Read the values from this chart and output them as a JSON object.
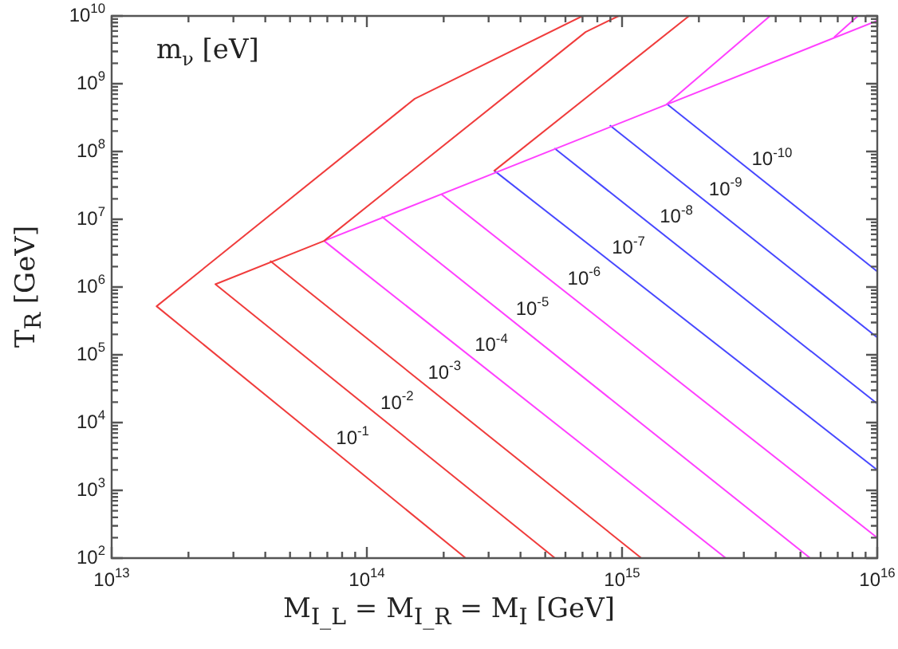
{
  "chart_data": {
    "type": "line",
    "xlabel": "M$_{I_L}$ = M$_{I_R}$ = M$_{I}$ [GeV]",
    "ylabel": "T$_{R}$ [GeV]",
    "log": "xy",
    "grid": false,
    "legend": false,
    "marker": "none",
    "line_style": "solid",
    "xlim": [
      10000000000000.0,
      1e+16
    ],
    "ylim": [
      100,
      10000000000.0
    ],
    "xticks": [
      {
        "value": 10000000000000.0,
        "label": "10$^{13}$"
      },
      {
        "value": 20000000000000.0,
        "label": null
      },
      {
        "value": 30000000000000.0,
        "label": null
      },
      {
        "value": 40000000000000.0,
        "label": null
      },
      {
        "value": 50000000000000.0,
        "label": null
      },
      {
        "value": 60000000000000.0,
        "label": null
      },
      {
        "value": 70000000000000.0,
        "label": null
      },
      {
        "value": 80000000000000.0,
        "label": null
      },
      {
        "value": 90000000000000.0,
        "label": null
      },
      {
        "value": 100000000000000.0,
        "label": "10$^{14}$"
      },
      {
        "value": 200000000000000.0,
        "label": null
      },
      {
        "value": 300000000000000.0,
        "label": null
      },
      {
        "value": 400000000000000.0,
        "label": null
      },
      {
        "value": 500000000000000.0,
        "label": null
      },
      {
        "value": 600000000000000.0,
        "label": null
      },
      {
        "value": 700000000000000.0,
        "label": null
      },
      {
        "value": 800000000000000.0,
        "label": null
      },
      {
        "value": 900000000000000.0,
        "label": null
      },
      {
        "value": 1000000000000000.0,
        "label": "10$^{15}$"
      },
      {
        "value": 2000000000000000.0,
        "label": null
      },
      {
        "value": 3000000000000000.0,
        "label": null
      },
      {
        "value": 4000000000000000.0,
        "label": null
      },
      {
        "value": 5000000000000000.0,
        "label": null
      },
      {
        "value": 6000000000000000.0,
        "label": null
      },
      {
        "value": 7000000000000000.0,
        "label": null
      },
      {
        "value": 8000000000000000.0,
        "label": null
      },
      {
        "value": 9000000000000000.0,
        "label": null
      },
      {
        "value": 1e+16,
        "label": "10$^{16}$"
      }
    ],
    "yticks": [
      {
        "value": 100.0,
        "label": "10$^{2}$"
      },
      {
        "value": 200.0,
        "label": null
      },
      {
        "value": 300.0,
        "label": null
      },
      {
        "value": 400.0,
        "label": null
      },
      {
        "value": 500.0,
        "label": null
      },
      {
        "value": 600.0,
        "label": null
      },
      {
        "value": 700.0,
        "label": null
      },
      {
        "value": 800.0,
        "label": null
      },
      {
        "value": 900.0,
        "label": null
      },
      {
        "value": 1000.0,
        "label": "10$^{3}$"
      },
      {
        "value": 2000.0,
        "label": null
      },
      {
        "value": 3000.0,
        "label": null
      },
      {
        "value": 4000.0,
        "label": null
      },
      {
        "value": 5000.0,
        "label": null
      },
      {
        "value": 6000.0,
        "label": null
      },
      {
        "value": 7000.0,
        "label": null
      },
      {
        "value": 8000.0,
        "label": null
      },
      {
        "value": 9000.0,
        "label": null
      },
      {
        "value": 10000.0,
        "label": "10$^{4}$"
      },
      {
        "value": 20000.0,
        "label": null
      },
      {
        "value": 30000.0,
        "label": null
      },
      {
        "value": 40000.0,
        "label": null
      },
      {
        "value": 50000.0,
        "label": null
      },
      {
        "value": 60000.0,
        "label": null
      },
      {
        "value": 70000.0,
        "label": null
      },
      {
        "value": 80000.0,
        "label": null
      },
      {
        "value": 90000.0,
        "label": null
      },
      {
        "value": 100000.0,
        "label": "10$^{5}$"
      },
      {
        "value": 200000.0,
        "label": null
      },
      {
        "value": 300000.0,
        "label": null
      },
      {
        "value": 400000.0,
        "label": null
      },
      {
        "value": 500000.0,
        "label": null
      },
      {
        "value": 600000.0,
        "label": null
      },
      {
        "value": 700000.0,
        "label": null
      },
      {
        "value": 800000.0,
        "label": null
      },
      {
        "value": 900000.0,
        "label": null
      },
      {
        "value": 1000000.0,
        "label": "10$^{6}$"
      },
      {
        "value": 2000000.0,
        "label": null
      },
      {
        "value": 3000000.0,
        "label": null
      },
      {
        "value": 4000000.0,
        "label": null
      },
      {
        "value": 5000000.0,
        "label": null
      },
      {
        "value": 6000000.0,
        "label": null
      },
      {
        "value": 7000000.0,
        "label": null
      },
      {
        "value": 8000000.0,
        "label": null
      },
      {
        "value": 9000000.0,
        "label": null
      },
      {
        "value": 10000000.0,
        "label": "10$^{7}$"
      },
      {
        "value": 20000000.0,
        "label": null
      },
      {
        "value": 30000000.0,
        "label": null
      },
      {
        "value": 40000000.0,
        "label": null
      },
      {
        "value": 50000000.0,
        "label": null
      },
      {
        "value": 60000000.0,
        "label": null
      },
      {
        "value": 70000000.0,
        "label": null
      },
      {
        "value": 80000000.0,
        "label": null
      },
      {
        "value": 90000000.0,
        "label": null
      },
      {
        "value": 100000000.0,
        "label": "10$^{8}$"
      },
      {
        "value": 200000000.0,
        "label": null
      },
      {
        "value": 300000000.0,
        "label": null
      },
      {
        "value": 400000000.0,
        "label": null
      },
      {
        "value": 500000000.0,
        "label": null
      },
      {
        "value": 600000000.0,
        "label": null
      },
      {
        "value": 700000000.0,
        "label": null
      },
      {
        "value": 800000000.0,
        "label": null
      },
      {
        "value": 900000000.0,
        "label": null
      },
      {
        "value": 1000000000.0,
        "label": "10$^{9}$"
      },
      {
        "value": 2000000000.0,
        "label": null
      },
      {
        "value": 3000000000.0,
        "label": null
      },
      {
        "value": 4000000000.0,
        "label": null
      },
      {
        "value": 5000000000.0,
        "label": null
      },
      {
        "value": 6000000000.0,
        "label": null
      },
      {
        "value": 7000000000.0,
        "label": null
      },
      {
        "value": 8000000000.0,
        "label": null
      },
      {
        "value": 9000000000.0,
        "label": null
      },
      {
        "value": 10000000000.0,
        "label": "10$^{10}$"
      }
    ],
    "series": [
      {
        "color": "#f03c3c",
        "x": [
          244000000000000.0,
          15000000000000.0,
          154000000000000.0,
          700000000000000.0
        ],
        "values": [
          100,
          520000.0,
          600000000.0,
          10000000000.0
        ]
      },
      {
        "color": "#f03c3c",
        "x": [
          546000000000000.0,
          25500000000000.0,
          68000000000000.0,
          720000000000000.0,
          970000000000000.0
        ],
        "values": [
          100,
          1100000.0,
          4800000.0,
          5800000000.0,
          10000000000.0
        ]
      },
      {
        "color": "#f03c3c",
        "x": [
          42000000000000.0,
          1190000000000000.0
        ],
        "values": [
          2400000.0,
          100
        ]
      },
      {
        "color": "#f03c3c",
        "x": [
          316000000000000.0,
          1830000000000000.0
        ],
        "values": [
          52000000.0,
          10000000000.0
        ]
      },
      {
        "color": "#ff40ff",
        "x": [
          2550000000000000.0,
          68000000000000.0,
          1e+16
        ],
        "values": [
          100,
          4800000.0,
          8500000000.0
        ]
      },
      {
        "color": "#ff40ff",
        "x": [
          115000000000000.0,
          5460000000000000.0
        ],
        "values": [
          10800000.0,
          100
        ]
      },
      {
        "color": "#ff40ff",
        "x": [
          197000000000000.0,
          1e+16
        ],
        "values": [
          23000000.0,
          200
        ]
      },
      {
        "color": "#ff40ff",
        "x": [
          1500000000000000.0,
          3800000000000000.0
        ],
        "values": [
          500000000.0,
          10000000000.0
        ]
      },
      {
        "color": "#ff40ff",
        "x": [
          6800000000000000.0,
          8400000000000000.0
        ],
        "values": [
          4900000000.0,
          10000000000.0
        ]
      },
      {
        "color": "#4848ff",
        "x": [
          316000000000000.0,
          1e+16
        ],
        "values": [
          52000000.0,
          2000
        ]
      },
      {
        "color": "#4848ff",
        "x": [
          546000000000000.0,
          1e+16
        ],
        "values": [
          110000000.0,
          19000.0
        ]
      },
      {
        "color": "#4848ff",
        "x": [
          900000000000000.0,
          1e+16
        ],
        "values": [
          240000000.0,
          180000.0
        ]
      },
      {
        "color": "#4848ff",
        "x": [
          1500000000000000.0,
          1e+16
        ],
        "values": [
          500000000.0,
          1700000.0
        ]
      }
    ],
    "annotations": [
      "m$_{ν}$ [eV]",
      {
        "text": "10$^{-1}$",
        "x": 83000000000000.0,
        "y": 2730.0
      },
      {
        "text": "10$^{-2}$",
        "x": 124000000000000.0,
        "y": 9000.0
      },
      {
        "text": "10$^{-3}$",
        "x": 190000000000000.0,
        "y": 25000.0
      },
      {
        "text": "10$^{-4}$",
        "x": 290000000000000.0,
        "y": 64000.0
      },
      {
        "text": "10$^{-5}$",
        "x": 420000000000000.0,
        "y": 220000.0
      },
      {
        "text": "10$^{-6}$",
        "x": 670000000000000.0,
        "y": 610000.0
      },
      {
        "text": "10$^{-7}$",
        "x": 1000000000000000.0,
        "y": 1750000.0
      },
      {
        "text": "10$^{-8}$",
        "x": 1540000000000000.0,
        "y": 5000000.0
      },
      {
        "text": "10$^{-9}$",
        "x": 2400000000000000.0,
        "y": 12800000.0
      },
      {
        "text": "10$^{-10}$",
        "x": 3650000000000000.0,
        "y": 35000000.0
      }
    ]
  }
}
